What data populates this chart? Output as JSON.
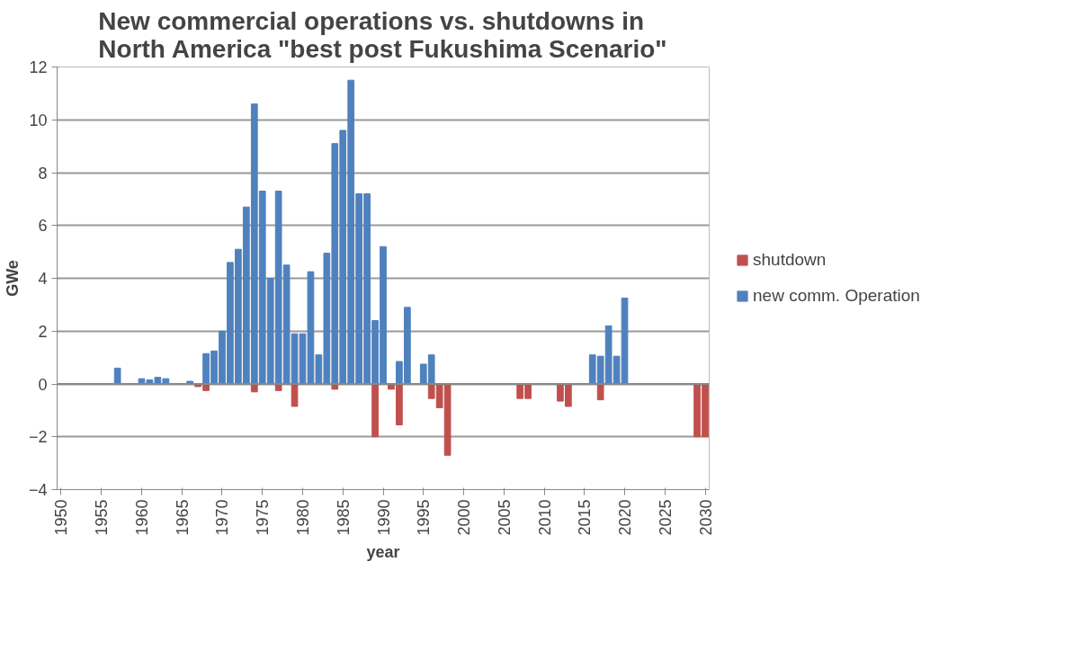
{
  "chart_data": {
    "type": "bar",
    "stacked": true,
    "title": "New commercial operations vs. shutdowns in North America \"best post Fukushima Scenario\"",
    "xlabel": "year",
    "ylabel": "GWe",
    "x": [
      1950,
      1951,
      1952,
      1953,
      1954,
      1955,
      1956,
      1957,
      1958,
      1959,
      1960,
      1961,
      1962,
      1963,
      1964,
      1965,
      1966,
      1967,
      1968,
      1969,
      1970,
      1971,
      1972,
      1973,
      1974,
      1975,
      1976,
      1977,
      1978,
      1979,
      1980,
      1981,
      1982,
      1983,
      1984,
      1985,
      1986,
      1987,
      1988,
      1989,
      1990,
      1991,
      1992,
      1993,
      1994,
      1995,
      1996,
      1997,
      1998,
      1999,
      2000,
      2001,
      2002,
      2003,
      2004,
      2005,
      2006,
      2007,
      2008,
      2009,
      2010,
      2011,
      2012,
      2013,
      2014,
      2015,
      2016,
      2017,
      2018,
      2019,
      2020,
      2021,
      2022,
      2023,
      2024,
      2025,
      2026,
      2027,
      2028,
      2029,
      2030
    ],
    "series": [
      {
        "name": "shutdown",
        "color": "#c0504d",
        "values": [
          0,
          0,
          0,
          0,
          0,
          0,
          0,
          0,
          0,
          0,
          0,
          0,
          0,
          0,
          0,
          0,
          0,
          -0.1,
          -0.25,
          0,
          0,
          0,
          0,
          0,
          -0.3,
          0,
          0,
          -0.25,
          0,
          -0.85,
          0,
          0,
          0,
          0,
          -0.2,
          0,
          0,
          0,
          0,
          -2.0,
          0,
          -0.2,
          -1.55,
          0,
          0,
          0,
          -0.55,
          -0.9,
          -2.7,
          0,
          0,
          0,
          0,
          0,
          0,
          0,
          0,
          -0.55,
          -0.55,
          0,
          0,
          0,
          -0.65,
          -0.85,
          0,
          0,
          0,
          -0.6,
          0,
          0,
          0,
          0,
          0,
          0,
          0,
          0,
          0,
          0,
          0,
          -2.0,
          -2.0
        ]
      },
      {
        "name": "new comm. Operation",
        "color": "#4f81bd",
        "values": [
          0,
          0,
          0,
          0,
          0,
          0,
          0,
          0.6,
          0,
          0,
          0.2,
          0.15,
          0.25,
          0.2,
          0,
          0,
          0.1,
          0,
          1.15,
          1.25,
          2.0,
          4.6,
          5.1,
          6.7,
          10.6,
          7.3,
          4.0,
          7.3,
          4.5,
          1.9,
          1.9,
          4.25,
          1.1,
          4.95,
          9.1,
          9.6,
          11.5,
          7.2,
          7.2,
          2.4,
          5.2,
          0,
          0.85,
          2.9,
          0,
          0.75,
          1.1,
          0,
          0,
          0,
          0,
          0,
          0,
          0,
          0,
          0,
          0,
          0,
          0,
          0,
          0,
          0,
          0,
          0,
          0,
          0,
          1.1,
          1.05,
          2.2,
          1.05,
          3.25,
          0,
          0,
          0,
          0,
          0,
          0,
          0,
          0,
          0,
          0
        ]
      }
    ],
    "xlim": [
      1949.5,
      2030.5
    ],
    "xticks": [
      1950,
      1955,
      1960,
      1965,
      1970,
      1975,
      1980,
      1985,
      1990,
      1995,
      2000,
      2005,
      2010,
      2015,
      2020,
      2025,
      2030
    ],
    "ylim": [
      -4,
      12
    ],
    "yticks": [
      -4,
      -2,
      0,
      2,
      4,
      6,
      8,
      10,
      12
    ],
    "grid": "y",
    "legend": "right"
  }
}
